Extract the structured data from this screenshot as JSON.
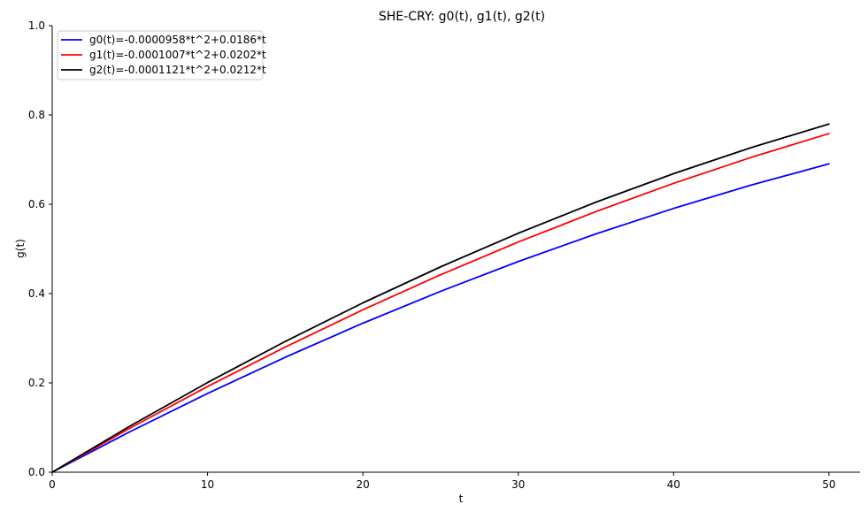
{
  "chart_data": {
    "type": "line",
    "title": "SHE-CRY: g0(t), g1(t), g2(t)",
    "xlabel": "t",
    "ylabel": "g(t)",
    "xlim": [
      0,
      52
    ],
    "ylim": [
      0,
      1.0
    ],
    "xticks": [
      0,
      10,
      20,
      30,
      40,
      50
    ],
    "xtick_labels": [
      "0",
      "10",
      "20",
      "30",
      "40",
      "50"
    ],
    "yticks": [
      0.0,
      0.2,
      0.4,
      0.6,
      0.8,
      1.0
    ],
    "ytick_labels": [
      "0.0",
      "0.2",
      "0.4",
      "0.6",
      "0.8",
      "1.0"
    ],
    "grid": false,
    "legend_position": "top-left",
    "series": [
      {
        "name": "g0(t)=-0.0000958*t^2+0.0186*t",
        "color": "#0000ff",
        "x": [
          0,
          5,
          10,
          15,
          20,
          25,
          30,
          35,
          40,
          45,
          50
        ],
        "y": [
          0.0,
          0.0906,
          0.1764,
          0.2574,
          0.3337,
          0.4051,
          0.4718,
          0.5337,
          0.5907,
          0.643,
          0.6905
        ]
      },
      {
        "name": "g1(t)=-0.0001007*t^2+0.0202*t",
        "color": "#ff0000",
        "x": [
          0,
          5,
          10,
          15,
          20,
          25,
          30,
          35,
          40,
          45,
          50
        ],
        "y": [
          0.0,
          0.0985,
          0.1919,
          0.2803,
          0.3637,
          0.4421,
          0.5154,
          0.5836,
          0.6469,
          0.7051,
          0.7583
        ]
      },
      {
        "name": "g2(t)=-0.0001121*t^2+0.0212*t",
        "color": "#000000",
        "x": [
          0,
          5,
          10,
          15,
          20,
          25,
          30,
          35,
          40,
          45,
          50
        ],
        "y": [
          0.0,
          0.1032,
          0.2008,
          0.2928,
          0.3792,
          0.4599,
          0.5351,
          0.6047,
          0.6686,
          0.727,
          0.7797
        ]
      }
    ]
  }
}
